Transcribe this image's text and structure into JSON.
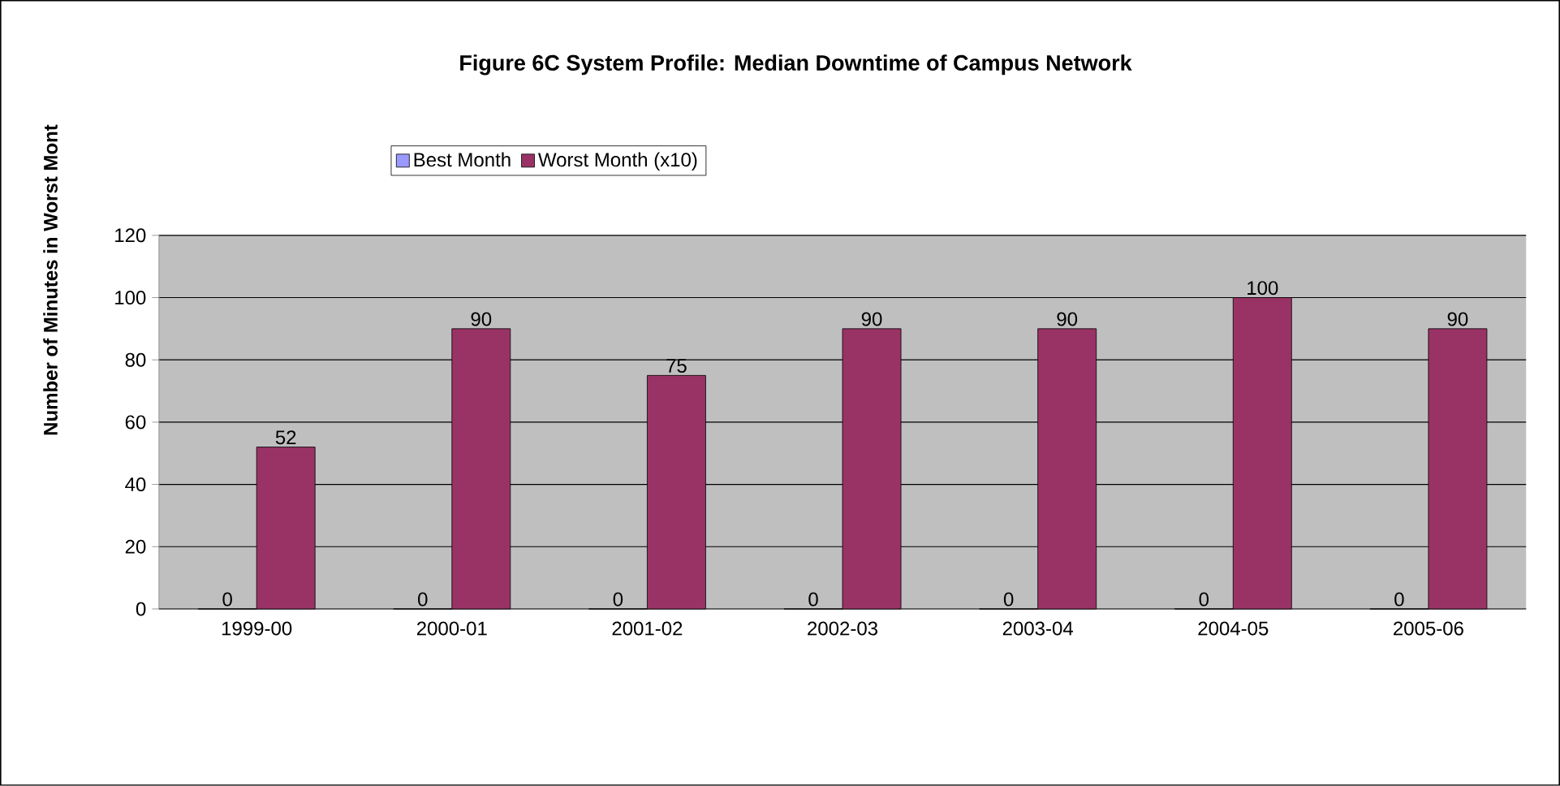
{
  "chart_data": {
    "type": "bar",
    "title": "Figure 6C System Profile: Median Downtime of Campus Network",
    "ylabel": "Number of Minutes in Worst Mont",
    "categories": [
      "1999-00",
      "2000-01",
      "2001-02",
      "2002-03",
      "2003-04",
      "2004-05",
      "2005-06"
    ],
    "series": [
      {
        "name": "Best Month",
        "color": "#9999ff",
        "values": [
          0,
          0,
          0,
          0,
          0,
          0,
          0
        ]
      },
      {
        "name": "Worst Month (x10)",
        "color": "#993366",
        "values": [
          52,
          90,
          75,
          90,
          90,
          100,
          90
        ]
      }
    ],
    "ylim": [
      0,
      120
    ],
    "yticks": [
      0,
      20,
      40,
      60,
      80,
      100,
      120
    ],
    "grid": "y",
    "legend": "top",
    "data_labels": true
  }
}
